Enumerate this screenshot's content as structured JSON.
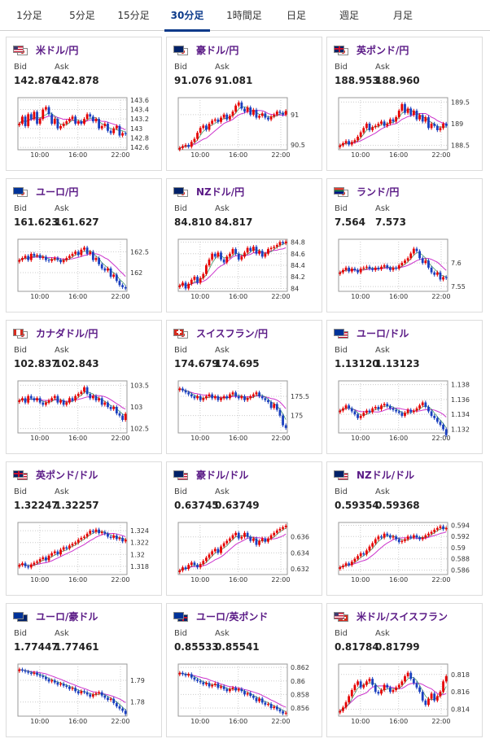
{
  "tabs": [
    {
      "label": "1分足",
      "active": false
    },
    {
      "label": "5分足",
      "active": false
    },
    {
      "label": "15分足",
      "active": false
    },
    {
      "label": "30分足",
      "active": true
    },
    {
      "label": "1時間足",
      "active": false
    },
    {
      "label": "日足",
      "active": false
    },
    {
      "label": "週足",
      "active": false
    },
    {
      "label": "月足",
      "active": false
    }
  ],
  "labels": {
    "bid": "Bid",
    "ask": "Ask"
  },
  "colors": {
    "up": "#e60000",
    "down": "#1a3fbf",
    "ma": "#cc33cc",
    "ma_short": "#2e8b57",
    "grid": "#cccccc",
    "title": "#5a1a86",
    "tab_active": "#0b3a8a"
  },
  "pairs": [
    {
      "name": "米ドル/円",
      "flags": [
        "US",
        "JP"
      ],
      "bid": "142.876",
      "ask": "142.878",
      "chart_data": {
        "type": "line",
        "x_ticks": [
          "10:00",
          "16:00",
          "22:00"
        ],
        "y_ticks": [
          "143.6",
          "143.4",
          "143.2",
          "143",
          "142.8",
          "142.6"
        ],
        "y_range": [
          142.55,
          143.65
        ],
        "close": [
          143.1,
          143.25,
          143.05,
          143.3,
          143.2,
          143.35,
          143.1,
          143.2,
          143.4,
          143.45,
          143.3,
          143.1,
          143.2,
          143.0,
          143.05,
          143.1,
          143.15,
          143.2,
          143.25,
          143.1,
          143.15,
          143.1,
          143.2,
          143.3,
          143.25,
          143.15,
          143.2,
          143.0,
          143.05,
          143.1,
          142.95,
          142.9,
          143.0,
          143.05,
          142.85,
          142.9,
          142.88
        ]
      }
    },
    {
      "name": "豪ドル/円",
      "flags": [
        "AU",
        "JP"
      ],
      "bid": "91.076",
      "ask": "91.081",
      "chart_data": {
        "type": "line",
        "x_ticks": [
          "10:00",
          "16:00",
          "22:00"
        ],
        "y_ticks": [
          "91",
          "90.5"
        ],
        "y_range": [
          90.42,
          91.28
        ],
        "close": [
          90.45,
          90.48,
          90.5,
          90.47,
          90.55,
          90.6,
          90.7,
          90.78,
          90.82,
          90.75,
          90.85,
          90.9,
          90.92,
          90.88,
          90.95,
          91.0,
          90.92,
          90.98,
          91.05,
          91.15,
          91.2,
          91.1,
          91.05,
          91.12,
          91.0,
          91.08,
          90.95,
          90.98,
          91.02,
          90.95,
          90.92,
          90.97,
          91.0,
          91.05,
          91.03,
          91.0,
          91.06
        ]
      }
    },
    {
      "name": "英ポンド/円",
      "flags": [
        "GB",
        "JP"
      ],
      "bid": "188.953",
      "ask": "188.960",
      "chart_data": {
        "type": "line",
        "x_ticks": [
          "10:00",
          "16:00",
          "22:00"
        ],
        "y_ticks": [
          "189.5",
          "189",
          "188.5"
        ],
        "y_range": [
          188.4,
          189.6
        ],
        "close": [
          188.5,
          188.55,
          188.6,
          188.52,
          188.58,
          188.62,
          188.7,
          188.8,
          188.9,
          189.0,
          188.85,
          188.92,
          188.95,
          189.0,
          189.05,
          188.95,
          189.0,
          189.1,
          189.05,
          189.15,
          189.3,
          189.45,
          189.25,
          189.35,
          189.2,
          189.3,
          189.1,
          189.2,
          189.05,
          189.15,
          188.9,
          189.0,
          188.95,
          188.85,
          188.9,
          189.0,
          188.95
        ]
      }
    },
    {
      "name": "ユーロ/円",
      "flags": [
        "EU",
        "JP"
      ],
      "bid": "161.623",
      "ask": "161.627",
      "chart_data": {
        "type": "line",
        "x_ticks": [
          "10:00",
          "16:00",
          "22:00"
        ],
        "y_ticks": [
          "162.5",
          "162"
        ],
        "y_range": [
          161.55,
          162.8
        ],
        "close": [
          162.3,
          162.35,
          162.4,
          162.3,
          162.45,
          162.4,
          162.42,
          162.35,
          162.38,
          162.3,
          162.28,
          162.32,
          162.35,
          162.3,
          162.25,
          162.3,
          162.35,
          162.4,
          162.45,
          162.5,
          162.42,
          162.55,
          162.6,
          162.45,
          162.5,
          162.3,
          162.35,
          162.2,
          162.1,
          162.05,
          162.1,
          161.9,
          161.95,
          161.8,
          161.7,
          161.65,
          161.62
        ]
      }
    },
    {
      "name": "NZドル/円",
      "flags": [
        "NZ",
        "JP"
      ],
      "bid": "84.810",
      "ask": "84.817",
      "chart_data": {
        "type": "line",
        "x_ticks": [
          "10:00",
          "16:00",
          "22:00"
        ],
        "y_ticks": [
          "84.8",
          "84.6",
          "84.4",
          "84.2",
          "84"
        ],
        "y_range": [
          83.95,
          84.85
        ],
        "close": [
          84.05,
          84.1,
          84.0,
          84.08,
          84.15,
          84.2,
          84.1,
          84.18,
          84.25,
          84.4,
          84.5,
          84.6,
          84.55,
          84.62,
          84.5,
          84.45,
          84.55,
          84.6,
          84.68,
          84.6,
          84.5,
          84.55,
          84.62,
          84.7,
          84.65,
          84.72,
          84.6,
          84.65,
          84.55,
          84.6,
          84.68,
          84.7,
          84.72,
          84.75,
          84.8,
          84.78,
          84.81
        ]
      }
    },
    {
      "name": "ランド/円",
      "flags": [
        "ZA",
        "JP"
      ],
      "bid": "7.564",
      "ask": "7.573",
      "chart_data": {
        "type": "line",
        "x_ticks": [
          "10:00",
          "16:00",
          "22:00"
        ],
        "y_ticks": [
          "7.6",
          "7.55"
        ],
        "y_range": [
          7.54,
          7.65
        ],
        "close": [
          7.58,
          7.585,
          7.59,
          7.582,
          7.588,
          7.585,
          7.58,
          7.588,
          7.59,
          7.592,
          7.588,
          7.585,
          7.59,
          7.587,
          7.592,
          7.595,
          7.59,
          7.585,
          7.59,
          7.588,
          7.595,
          7.6,
          7.605,
          7.61,
          7.62,
          7.63,
          7.625,
          7.61,
          7.6,
          7.605,
          7.59,
          7.58,
          7.575,
          7.58,
          7.565,
          7.57,
          7.568
        ]
      }
    },
    {
      "name": "カナダドル/円",
      "flags": [
        "CA",
        "JP"
      ],
      "bid": "102.837",
      "ask": "102.843",
      "chart_data": {
        "type": "line",
        "x_ticks": [
          "10:00",
          "16:00",
          "22:00"
        ],
        "y_ticks": [
          "103.5",
          "103",
          "102.5"
        ],
        "y_range": [
          102.4,
          103.6
        ],
        "close": [
          103.15,
          103.2,
          103.1,
          103.25,
          103.2,
          103.15,
          103.2,
          103.1,
          103.05,
          103.1,
          103.15,
          103.2,
          103.25,
          103.1,
          103.15,
          103.05,
          103.1,
          103.2,
          103.15,
          103.25,
          103.3,
          103.35,
          103.45,
          103.3,
          103.2,
          103.25,
          103.15,
          103.2,
          103.05,
          103.1,
          103.0,
          102.95,
          103.0,
          102.85,
          102.8,
          102.7,
          102.84
        ]
      }
    },
    {
      "name": "スイスフラン/円",
      "flags": [
        "CH",
        "JP"
      ],
      "bid": "174.679",
      "ask": "174.695",
      "chart_data": {
        "type": "line",
        "x_ticks": [
          "10:00",
          "16:00",
          "22:00"
        ],
        "y_ticks": [
          "175.5",
          "175"
        ],
        "y_range": [
          174.55,
          175.9
        ],
        "close": [
          175.7,
          175.65,
          175.6,
          175.55,
          175.5,
          175.45,
          175.5,
          175.4,
          175.45,
          175.5,
          175.55,
          175.45,
          175.5,
          175.4,
          175.45,
          175.5,
          175.45,
          175.55,
          175.6,
          175.5,
          175.45,
          175.5,
          175.4,
          175.45,
          175.5,
          175.55,
          175.6,
          175.5,
          175.45,
          175.4,
          175.35,
          175.2,
          175.3,
          175.15,
          175.0,
          174.75,
          174.68
        ]
      }
    },
    {
      "name": "ユーロ/ドル",
      "flags": [
        "EU",
        "US"
      ],
      "bid": "1.13120",
      "ask": "1.13123",
      "chart_data": {
        "type": "line",
        "x_ticks": [
          "10:00",
          "16:00",
          "22:00"
        ],
        "y_ticks": [
          "1.138",
          "1.136",
          "1.134",
          "1.132"
        ],
        "y_range": [
          1.1315,
          1.1385
        ],
        "close": [
          1.1345,
          1.1348,
          1.1352,
          1.1348,
          1.1344,
          1.134,
          1.1335,
          1.1338,
          1.1342,
          1.1345,
          1.1343,
          1.1348,
          1.135,
          1.1347,
          1.1352,
          1.1354,
          1.1351,
          1.1348,
          1.1346,
          1.1344,
          1.1342,
          1.1338,
          1.1342,
          1.1346,
          1.1343,
          1.1345,
          1.1348,
          1.1352,
          1.1356,
          1.135,
          1.1344,
          1.1338,
          1.1335,
          1.133,
          1.1326,
          1.132,
          1.1312
        ]
      }
    },
    {
      "name": "英ポンド/ドル",
      "flags": [
        "GB",
        "US"
      ],
      "bid": "1.32247",
      "ask": "1.32257",
      "chart_data": {
        "type": "line",
        "x_ticks": [
          "10:00",
          "16:00",
          "22:00"
        ],
        "y_ticks": [
          "1.324",
          "1.322",
          "1.32",
          "1.318"
        ],
        "y_range": [
          1.3166,
          1.3254
        ],
        "close": [
          1.3182,
          1.3185,
          1.318,
          1.3178,
          1.3183,
          1.3186,
          1.3188,
          1.3192,
          1.3195,
          1.319,
          1.3198,
          1.3202,
          1.3205,
          1.32,
          1.3208,
          1.3212,
          1.321,
          1.3215,
          1.3218,
          1.322,
          1.3225,
          1.3228,
          1.323,
          1.3235,
          1.324,
          1.3238,
          1.3242,
          1.3236,
          1.3238,
          1.3235,
          1.323,
          1.3228,
          1.3232,
          1.3226,
          1.3228,
          1.3222,
          1.3225
        ]
      }
    },
    {
      "name": "豪ドル/ドル",
      "flags": [
        "AU",
        "US"
      ],
      "bid": "0.63745",
      "ask": "0.63749",
      "chart_data": {
        "type": "line",
        "x_ticks": [
          "10:00",
          "16:00",
          "22:00"
        ],
        "y_ticks": [
          "0.636",
          "0.634",
          "0.632"
        ],
        "y_range": [
          0.6313,
          0.6378
        ],
        "close": [
          0.6318,
          0.6322,
          0.632,
          0.6325,
          0.6328,
          0.6325,
          0.6322,
          0.6326,
          0.633,
          0.6334,
          0.6338,
          0.6342,
          0.6345,
          0.634,
          0.6348,
          0.6352,
          0.6355,
          0.6358,
          0.6362,
          0.6365,
          0.6358,
          0.636,
          0.6365,
          0.636,
          0.6355,
          0.6358,
          0.635,
          0.6355,
          0.6358,
          0.6354,
          0.6358,
          0.6362,
          0.6365,
          0.6368,
          0.637,
          0.6372,
          0.6374
        ]
      }
    },
    {
      "name": "NZドル/ドル",
      "flags": [
        "NZ",
        "US"
      ],
      "bid": "0.59354",
      "ask": "0.59368",
      "chart_data": {
        "type": "line",
        "x_ticks": [
          "10:00",
          "16:00",
          "22:00"
        ],
        "y_ticks": [
          "0.594",
          "0.592",
          "0.59",
          "0.588",
          "0.586"
        ],
        "y_range": [
          0.5852,
          0.5945
        ],
        "close": [
          0.5865,
          0.5868,
          0.5872,
          0.5869,
          0.5875,
          0.588,
          0.5885,
          0.589,
          0.5888,
          0.5895,
          0.5902,
          0.5908,
          0.5915,
          0.592,
          0.5918,
          0.5925,
          0.5922,
          0.5918,
          0.592,
          0.5915,
          0.591,
          0.5912,
          0.5915,
          0.592,
          0.5918,
          0.5922,
          0.5918,
          0.5915,
          0.5918,
          0.5922,
          0.5925,
          0.5928,
          0.5932,
          0.5935,
          0.5938,
          0.5933,
          0.5935
        ]
      }
    },
    {
      "name": "ユーロ/豪ドル",
      "flags": [
        "EU",
        "AU"
      ],
      "bid": "1.77447",
      "ask": "1.77461",
      "chart_data": {
        "type": "line",
        "x_ticks": [
          "10:00",
          "16:00",
          "22:00"
        ],
        "y_ticks": [
          "1.79",
          "1.78"
        ],
        "y_range": [
          1.7735,
          1.7975
        ],
        "close": [
          1.795,
          1.7945,
          1.794,
          1.7935,
          1.793,
          1.7935,
          1.7925,
          1.792,
          1.7915,
          1.7905,
          1.7895,
          1.79,
          1.789,
          1.788,
          1.7885,
          1.7875,
          1.787,
          1.786,
          1.7865,
          1.785,
          1.784,
          1.785,
          1.7845,
          1.7835,
          1.7825,
          1.7835,
          1.784,
          1.7845,
          1.783,
          1.782,
          1.781,
          1.7815,
          1.7795,
          1.778,
          1.777,
          1.776,
          1.7745
        ]
      }
    },
    {
      "name": "ユーロ/英ポンド",
      "flags": [
        "EU",
        "GB"
      ],
      "bid": "0.85533",
      "ask": "0.85541",
      "chart_data": {
        "type": "line",
        "x_ticks": [
          "10:00",
          "16:00",
          "22:00"
        ],
        "y_ticks": [
          "0.862",
          "0.86",
          "0.858",
          "0.856"
        ],
        "y_range": [
          0.8548,
          0.8625
        ],
        "close": [
          0.8612,
          0.861,
          0.8608,
          0.861,
          0.8605,
          0.8602,
          0.86,
          0.8598,
          0.8595,
          0.8597,
          0.8592,
          0.8594,
          0.8596,
          0.859,
          0.8592,
          0.8588,
          0.8585,
          0.8588,
          0.859,
          0.8586,
          0.8588,
          0.8585,
          0.858,
          0.8582,
          0.8578,
          0.8575,
          0.857,
          0.8574,
          0.8568,
          0.8565,
          0.8566,
          0.856,
          0.8562,
          0.8558,
          0.8555,
          0.8552,
          0.8553
        ]
      }
    },
    {
      "name": "米ドル/スイスフラン",
      "flags": [
        "US",
        "CH"
      ],
      "bid": "0.81784",
      "ask": "0.81799",
      "chart_data": {
        "type": "line",
        "x_ticks": [
          "10:00",
          "16:00",
          "22:00"
        ],
        "y_ticks": [
          "0.818",
          "0.816",
          "0.814"
        ],
        "y_range": [
          0.8132,
          0.8192
        ],
        "close": [
          0.8138,
          0.8142,
          0.8148,
          0.8155,
          0.8162,
          0.8168,
          0.8172,
          0.8165,
          0.8168,
          0.8172,
          0.8175,
          0.8168,
          0.816,
          0.8158,
          0.8162,
          0.8168,
          0.8165,
          0.816,
          0.8162,
          0.8165,
          0.8168,
          0.8172,
          0.8178,
          0.8182,
          0.8175,
          0.817,
          0.8165,
          0.816,
          0.815,
          0.8145,
          0.8152,
          0.8158,
          0.815,
          0.8155,
          0.816,
          0.8172,
          0.8178
        ]
      }
    }
  ]
}
